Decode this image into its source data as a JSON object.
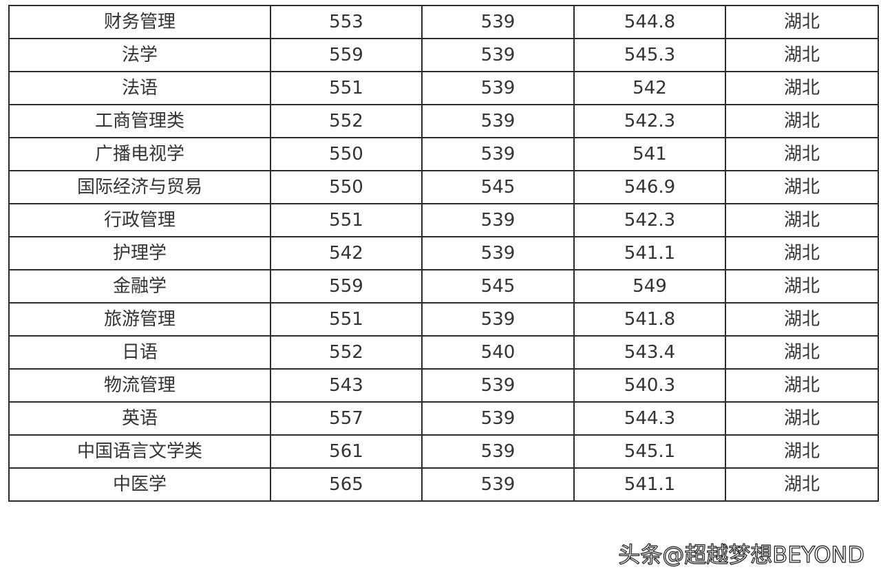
{
  "rows": [
    [
      "财务管理",
      "553",
      "539",
      "544.8",
      "湖北"
    ],
    [
      "法学",
      "559",
      "539",
      "545.3",
      "湖北"
    ],
    [
      "法语",
      "551",
      "539",
      "542",
      "湖北"
    ],
    [
      "工商管理类",
      "552",
      "539",
      "542.3",
      "湖北"
    ],
    [
      "广播电视学",
      "550",
      "539",
      "541",
      "湖北"
    ],
    [
      "国际经济与贸易",
      "550",
      "545",
      "546.9",
      "湖北"
    ],
    [
      "行政管理",
      "551",
      "539",
      "542.3",
      "湖北"
    ],
    [
      "护理学",
      "542",
      "539",
      "541.1",
      "湖北"
    ],
    [
      "金融学",
      "559",
      "545",
      "549",
      "湖北"
    ],
    [
      "旅游管理",
      "551",
      "539",
      "541.8",
      "湖北"
    ],
    [
      "日语",
      "552",
      "540",
      "543.4",
      "湖北"
    ],
    [
      "物流管理",
      "543",
      "539",
      "540.3",
      "湖北"
    ],
    [
      "英语",
      "557",
      "539",
      "544.3",
      "湖北"
    ],
    [
      "中国语言文学类",
      "561",
      "539",
      "545.1",
      "湖北"
    ],
    [
      "中医学",
      "565",
      "539",
      "541.1",
      "湖北"
    ]
  ],
  "watermark": "头条@超越梦想BEYOND"
}
